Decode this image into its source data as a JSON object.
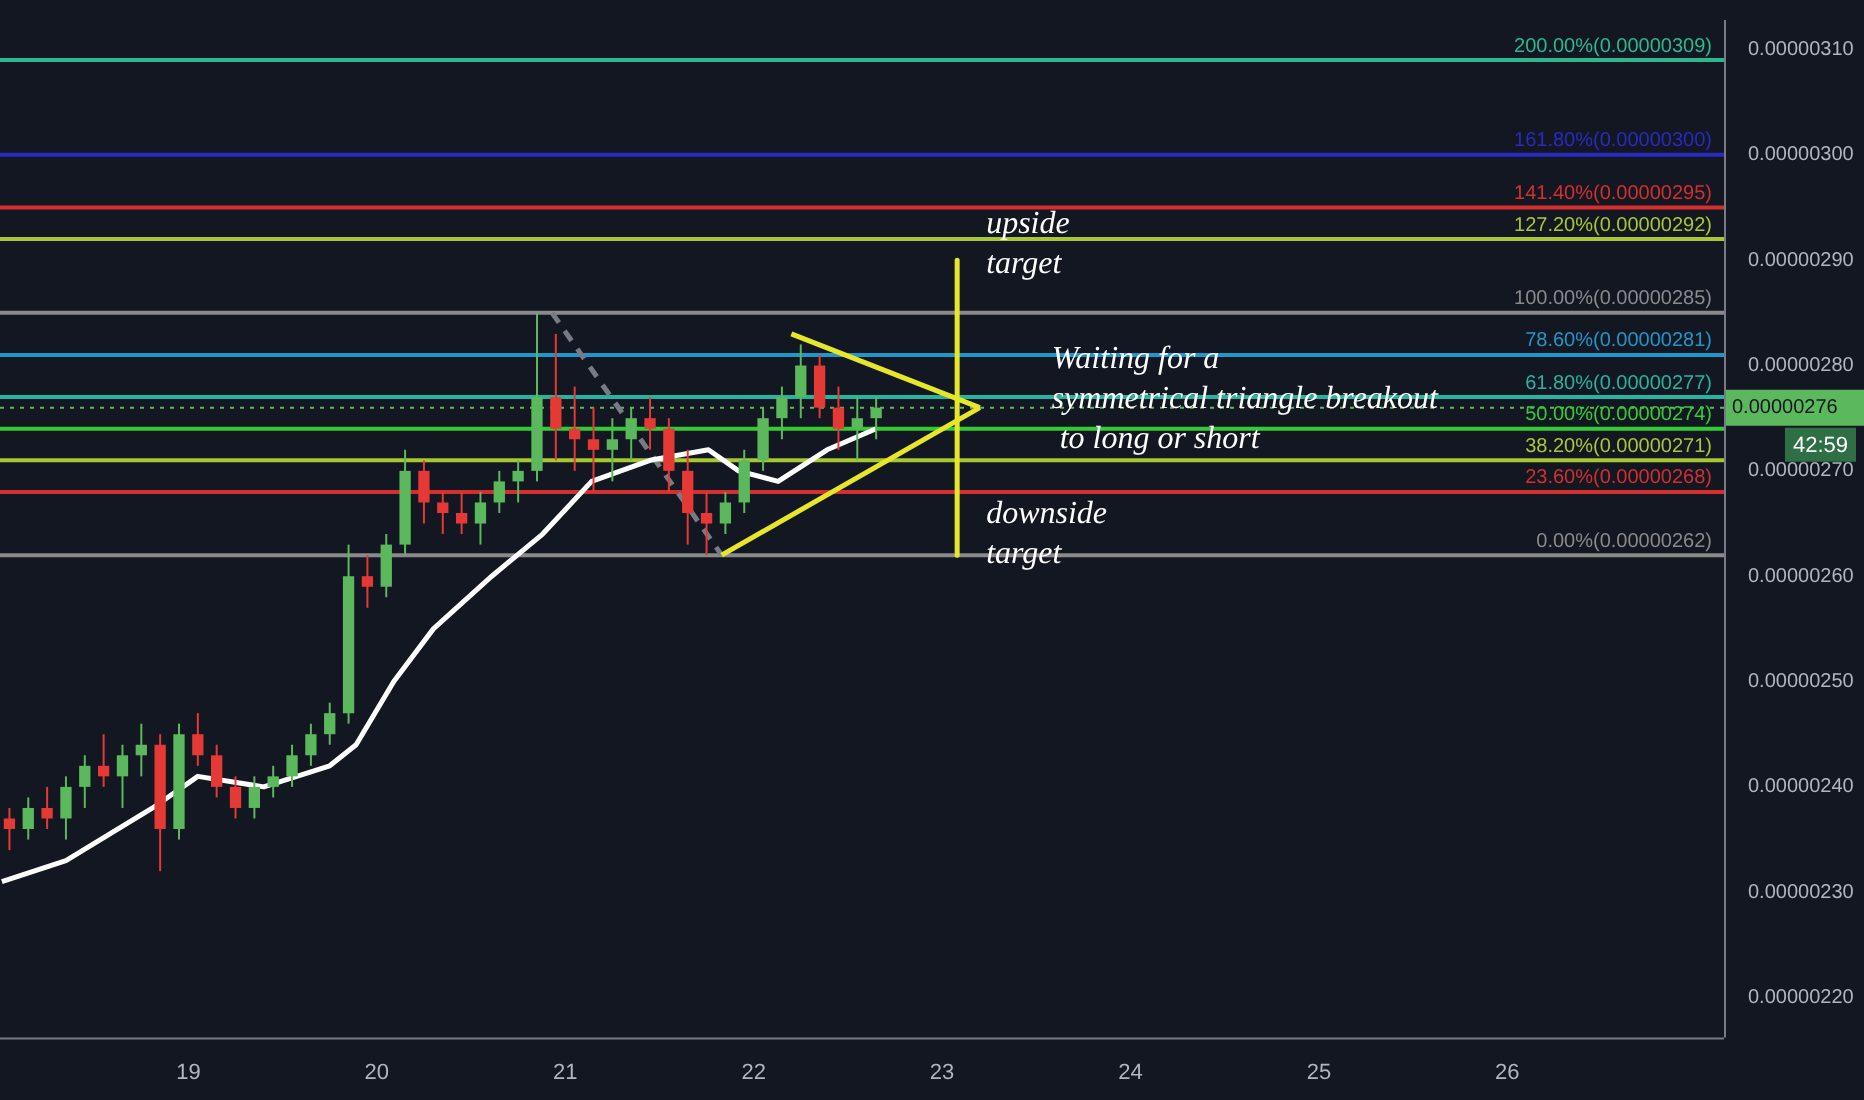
{
  "chart_data": {
    "type": "candlestick",
    "x": [
      18.05,
      18.15,
      18.25,
      18.35,
      18.45,
      18.55,
      18.65,
      18.75,
      18.85,
      18.95,
      19.05,
      19.15,
      19.25,
      19.35,
      19.45,
      19.55,
      19.65,
      19.75,
      19.85,
      19.95,
      20.05,
      20.15,
      20.25,
      20.35,
      20.45,
      20.55,
      20.65,
      20.75,
      20.85,
      20.95,
      21.05,
      21.15,
      21.25,
      21.35,
      21.45,
      21.55,
      21.65,
      21.75,
      21.85,
      21.95,
      22.05,
      22.15,
      22.25,
      22.35,
      22.45,
      22.55,
      22.65
    ],
    "ohlc": [
      [
        2.37e-06,
        2.38e-06,
        2.34e-06,
        2.36e-06
      ],
      [
        2.36e-06,
        2.39e-06,
        2.35e-06,
        2.38e-06
      ],
      [
        2.38e-06,
        2.4e-06,
        2.36e-06,
        2.37e-06
      ],
      [
        2.37e-06,
        2.41e-06,
        2.35e-06,
        2.4e-06
      ],
      [
        2.4e-06,
        2.43e-06,
        2.38e-06,
        2.42e-06
      ],
      [
        2.42e-06,
        2.45e-06,
        2.4e-06,
        2.41e-06
      ],
      [
        2.41e-06,
        2.44e-06,
        2.38e-06,
        2.43e-06
      ],
      [
        2.43e-06,
        2.46e-06,
        2.41e-06,
        2.44e-06
      ],
      [
        2.44e-06,
        2.45e-06,
        2.32e-06,
        2.36e-06
      ],
      [
        2.36e-06,
        2.46e-06,
        2.35e-06,
        2.45e-06
      ],
      [
        2.45e-06,
        2.47e-06,
        2.42e-06,
        2.43e-06
      ],
      [
        2.43e-06,
        2.44e-06,
        2.39e-06,
        2.4e-06
      ],
      [
        2.4e-06,
        2.41e-06,
        2.37e-06,
        2.38e-06
      ],
      [
        2.38e-06,
        2.41e-06,
        2.37e-06,
        2.4e-06
      ],
      [
        2.4e-06,
        2.42e-06,
        2.39e-06,
        2.41e-06
      ],
      [
        2.41e-06,
        2.44e-06,
        2.4e-06,
        2.43e-06
      ],
      [
        2.43e-06,
        2.46e-06,
        2.42e-06,
        2.45e-06
      ],
      [
        2.45e-06,
        2.48e-06,
        2.44e-06,
        2.47e-06
      ],
      [
        2.47e-06,
        2.63e-06,
        2.46e-06,
        2.6e-06
      ],
      [
        2.6e-06,
        2.62e-06,
        2.57e-06,
        2.59e-06
      ],
      [
        2.59e-06,
        2.64e-06,
        2.58e-06,
        2.63e-06
      ],
      [
        2.63e-06,
        2.72e-06,
        2.62e-06,
        2.7e-06
      ],
      [
        2.7e-06,
        2.71e-06,
        2.65e-06,
        2.67e-06
      ],
      [
        2.67e-06,
        2.68e-06,
        2.64e-06,
        2.66e-06
      ],
      [
        2.66e-06,
        2.68e-06,
        2.64e-06,
        2.65e-06
      ],
      [
        2.65e-06,
        2.68e-06,
        2.63e-06,
        2.67e-06
      ],
      [
        2.67e-06,
        2.7e-06,
        2.66e-06,
        2.69e-06
      ],
      [
        2.69e-06,
        2.71e-06,
        2.67e-06,
        2.7e-06
      ],
      [
        2.7e-06,
        2.85e-06,
        2.69e-06,
        2.77e-06
      ],
      [
        2.77e-06,
        2.83e-06,
        2.71e-06,
        2.74e-06
      ],
      [
        2.74e-06,
        2.78e-06,
        2.7e-06,
        2.73e-06
      ],
      [
        2.73e-06,
        2.76e-06,
        2.68e-06,
        2.72e-06
      ],
      [
        2.72e-06,
        2.75e-06,
        2.69e-06,
        2.73e-06
      ],
      [
        2.73e-06,
        2.76e-06,
        2.71e-06,
        2.75e-06
      ],
      [
        2.75e-06,
        2.77e-06,
        2.72e-06,
        2.74e-06
      ],
      [
        2.74e-06,
        2.75e-06,
        2.68e-06,
        2.7e-06
      ],
      [
        2.7e-06,
        2.72e-06,
        2.63e-06,
        2.66e-06
      ],
      [
        2.66e-06,
        2.68e-06,
        2.62e-06,
        2.65e-06
      ],
      [
        2.65e-06,
        2.68e-06,
        2.64e-06,
        2.67e-06
      ],
      [
        2.67e-06,
        2.72e-06,
        2.66e-06,
        2.71e-06
      ],
      [
        2.71e-06,
        2.76e-06,
        2.7e-06,
        2.75e-06
      ],
      [
        2.75e-06,
        2.78e-06,
        2.73e-06,
        2.77e-06
      ],
      [
        2.77e-06,
        2.82e-06,
        2.75e-06,
        2.8e-06
      ],
      [
        2.8e-06,
        2.81e-06,
        2.75e-06,
        2.76e-06
      ],
      [
        2.76e-06,
        2.78e-06,
        2.72e-06,
        2.74e-06
      ],
      [
        2.74e-06,
        2.77e-06,
        2.71e-06,
        2.75e-06
      ],
      [
        2.75e-06,
        2.77e-06,
        2.73e-06,
        2.76e-06
      ]
    ],
    "series": [
      {
        "type": "line",
        "color": "#ffffff",
        "x": [
          18.01,
          18.35,
          18.81,
          19.05,
          19.4,
          19.75,
          19.89,
          20.09,
          20.3,
          20.61,
          20.88,
          21.14,
          21.45,
          21.76,
          21.92,
          22.13,
          22.39,
          22.65
        ],
        "values": [
          2.31e-06,
          2.33e-06,
          2.38e-06,
          2.41e-06,
          2.4e-06,
          2.42e-06,
          2.44e-06,
          2.5e-06,
          2.55e-06,
          2.6e-06,
          2.64e-06,
          2.69e-06,
          2.71e-06,
          2.72e-06,
          2.7e-06,
          2.69e-06,
          2.72e-06,
          2.74e-06
        ]
      },
      {
        "type": "line",
        "color": "#e6e62a",
        "x": [
          22.2,
          23.2
        ],
        "values": [
          2.83e-06,
          2.76e-06
        ]
      },
      {
        "type": "line",
        "color": "#e6e62a",
        "x": [
          21.83,
          23.2
        ],
        "values": [
          2.62e-06,
          2.76e-06
        ]
      },
      {
        "type": "line",
        "color": "#e6e62a",
        "x": [
          23.08,
          23.08
        ],
        "values": [
          2.9e-06,
          2.62e-06
        ]
      },
      {
        "type": "line",
        "color": "#787b86",
        "line_style": "dashed",
        "x": [
          20.93,
          21.83
        ],
        "values": [
          2.85e-06,
          2.62e-06
        ]
      }
    ],
    "ref_lines": [
      {
        "axis": "y",
        "value": 3.09e-06,
        "label": "200.00%(0.00000309)",
        "color": "#2bb88e"
      },
      {
        "axis": "y",
        "value": 3e-06,
        "label": "161.80%(0.00000300)",
        "color": "#2a2ac0"
      },
      {
        "axis": "y",
        "value": 2.95e-06,
        "label": "141.40%(0.00000295)",
        "color": "#d32f2f"
      },
      {
        "axis": "y",
        "value": 2.92e-06,
        "label": "127.20%(0.00000292)",
        "color": "#a8c832"
      },
      {
        "axis": "y",
        "value": 2.85e-06,
        "label": "100.00%(0.00000285)",
        "color": "#8a8a8a"
      },
      {
        "axis": "y",
        "value": 2.81e-06,
        "label": "78.60%(0.00000281)",
        "color": "#2196c8"
      },
      {
        "axis": "y",
        "value": 2.77e-06,
        "label": "61.80%(0.00000277)",
        "color": "#26b3a0"
      },
      {
        "axis": "y",
        "value": 2.74e-06,
        "label": "50.00%(0.00000274)",
        "color": "#33cc33"
      },
      {
        "axis": "y",
        "value": 2.71e-06,
        "label": "38.20%(0.00000271)",
        "color": "#a8c832"
      },
      {
        "axis": "y",
        "value": 2.68e-06,
        "label": "23.60%(0.00000268)",
        "color": "#d32f2f"
      },
      {
        "axis": "y",
        "value": 2.62e-06,
        "label": "0.00%(0.00000262)",
        "color": "#8a8a8a"
      },
      {
        "axis": "y",
        "value": 2.76e-06,
        "label": "0.00000276",
        "color": "#5cb85c",
        "line_style": "dotted"
      }
    ],
    "annotations": [
      "upside\ntarget",
      "downside\ntarget",
      "Waiting for a\nsymmetrical triangle breakout\n to long or short",
      "42:59"
    ],
    "xlim": [
      18.0,
      27.15
    ],
    "xticks": [
      19,
      20,
      21,
      22,
      23,
      24,
      25,
      26
    ],
    "ylim": [
      2.162e-06,
      3.128e-06
    ],
    "yticks": [
      {
        "value": 2.2e-06,
        "label": "0.00000220"
      },
      {
        "value": 2.3e-06,
        "label": "0.00000230"
      },
      {
        "value": 2.4e-06,
        "label": "0.00000240"
      },
      {
        "value": 2.5e-06,
        "label": "0.00000250"
      },
      {
        "value": 2.6e-06,
        "label": "0.00000260"
      },
      {
        "value": 2.7e-06,
        "label": "0.00000270"
      },
      {
        "value": 2.8e-06,
        "label": "0.00000280"
      },
      {
        "value": 2.9e-06,
        "label": "0.00000290"
      },
      {
        "value": 3e-06,
        "label": "0.00000300"
      },
      {
        "value": 3.1e-06,
        "label": "0.00000310"
      }
    ],
    "grid": false,
    "legend": false
  }
}
